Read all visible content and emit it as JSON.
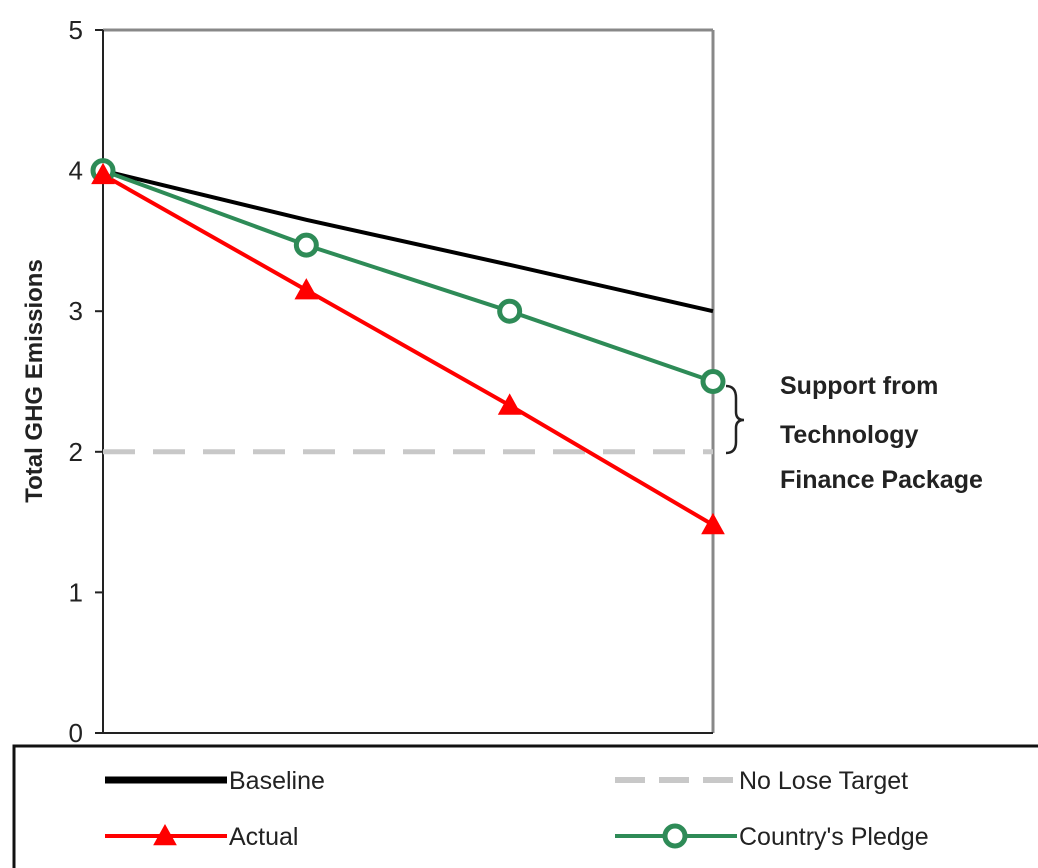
{
  "chart_data": {
    "type": "line",
    "title": "",
    "xlabel": "",
    "ylabel": "Total GHG Emissions",
    "ylim": [
      0,
      5
    ],
    "yticks": [
      0,
      1,
      2,
      3,
      4,
      5
    ],
    "x": [
      0,
      1,
      2,
      3
    ],
    "grid": false,
    "legend_position": "bottom",
    "series": [
      {
        "name": "Baseline",
        "color": "#000000",
        "style": "solid",
        "marker": "none",
        "values": [
          4,
          3.65,
          3.33,
          3.0
        ]
      },
      {
        "name": "No Lose Target",
        "color": "#c8c8c8",
        "style": "dashed",
        "marker": "none",
        "values": [
          2,
          2,
          2,
          2
        ]
      },
      {
        "name": "Actual",
        "color": "#ff0000",
        "style": "solid",
        "marker": "triangle",
        "values": [
          3.97,
          3.15,
          2.33,
          1.48
        ]
      },
      {
        "name": "Country's Pledge",
        "color": "#2e8b57",
        "style": "solid",
        "marker": "circle",
        "values": [
          4.0,
          3.47,
          3.0,
          2.5
        ]
      }
    ],
    "annotation": {
      "lines": [
        "Support from",
        "Technology",
        "Finance Package"
      ],
      "brace_from": 2.5,
      "brace_to": 2.0
    }
  }
}
